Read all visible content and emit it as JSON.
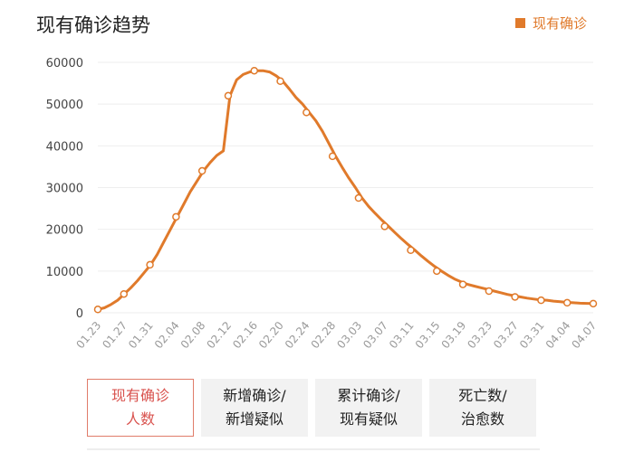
{
  "title": "现有确诊趋势",
  "legend": {
    "label": "现有确诊",
    "color": "#e07a2b"
  },
  "colors": {
    "line": "#e07a2b",
    "grid": "#eeeeee",
    "axis_text": "#444444",
    "tick_text": "#9a9a9a"
  },
  "tabs": [
    {
      "line1": "现有确诊",
      "line2": "人数",
      "active": true
    },
    {
      "line1": "新增确诊/",
      "line2": "新增疑似",
      "active": false
    },
    {
      "line1": "累计确诊/",
      "line2": "现有疑似",
      "active": false
    },
    {
      "line1": "死亡数/",
      "line2": "治愈数",
      "active": false
    }
  ],
  "chart_data": {
    "type": "line",
    "title": "现有确诊趋势",
    "xlabel": "",
    "ylabel": "",
    "legend": "top-right",
    "grid": true,
    "ylim": [
      0,
      60000
    ],
    "yticks": [
      0,
      10000,
      20000,
      30000,
      40000,
      50000,
      60000
    ],
    "x": [
      "01.23",
      "01.27",
      "01.31",
      "02.04",
      "02.08",
      "02.12",
      "02.16",
      "02.20",
      "02.24",
      "02.28",
      "03.03",
      "03.07",
      "03.11",
      "03.15",
      "03.19",
      "03.23",
      "03.27",
      "03.31",
      "04.04",
      "04.07"
    ],
    "series": [
      {
        "name": "现有确诊",
        "values": [
          800,
          4500,
          11500,
          23000,
          34000,
          52000,
          58000,
          55500,
          48000,
          37500,
          27500,
          20700,
          15000,
          10000,
          6800,
          5200,
          3800,
          3000,
          2400,
          2200
        ]
      }
    ],
    "curve": [
      [
        "01.23",
        800
      ],
      [
        "01.24",
        1200
      ],
      [
        "01.25",
        2000
      ],
      [
        "01.26",
        3000
      ],
      [
        "01.27",
        4500
      ],
      [
        "01.28",
        6000
      ],
      [
        "01.29",
        7700
      ],
      [
        "01.30",
        9600
      ],
      [
        "01.31",
        11500
      ],
      [
        "02.01",
        14000
      ],
      [
        "02.02",
        17000
      ],
      [
        "02.03",
        20000
      ],
      [
        "02.04",
        23000
      ],
      [
        "02.05",
        26000
      ],
      [
        "02.06",
        29000
      ],
      [
        "02.07",
        31500
      ],
      [
        "02.08",
        34000
      ],
      [
        "02.09",
        36000
      ],
      [
        "02.10",
        37700
      ],
      [
        "02.11",
        38800
      ],
      [
        "02.12",
        52000
      ],
      [
        "02.13",
        55800
      ],
      [
        "02.14",
        57100
      ],
      [
        "02.15",
        57700
      ],
      [
        "02.16",
        58000
      ],
      [
        "02.17",
        58000
      ],
      [
        "02.18",
        57700
      ],
      [
        "02.19",
        56800
      ],
      [
        "02.20",
        55500
      ],
      [
        "02.21",
        53600
      ],
      [
        "02.22",
        51600
      ],
      [
        "02.23",
        50000
      ],
      [
        "02.24",
        48000
      ],
      [
        "02.25",
        46000
      ],
      [
        "02.26",
        43500
      ],
      [
        "02.27",
        40500
      ],
      [
        "02.28",
        37500
      ],
      [
        "02.29",
        34800
      ],
      [
        "03.01",
        32300
      ],
      [
        "03.02",
        30000
      ],
      [
        "03.03",
        27500
      ],
      [
        "03.04",
        25500
      ],
      [
        "03.05",
        23800
      ],
      [
        "03.06",
        22200
      ],
      [
        "03.07",
        20700
      ],
      [
        "03.08",
        19200
      ],
      [
        "03.09",
        17700
      ],
      [
        "03.10",
        16300
      ],
      [
        "03.11",
        15000
      ],
      [
        "03.12",
        13600
      ],
      [
        "03.13",
        12300
      ],
      [
        "03.14",
        11100
      ],
      [
        "03.15",
        10000
      ],
      [
        "03.16",
        9000
      ],
      [
        "03.17",
        8100
      ],
      [
        "03.18",
        7400
      ],
      [
        "03.19",
        6800
      ],
      [
        "03.20",
        6400
      ],
      [
        "03.21",
        6000
      ],
      [
        "03.22",
        5600
      ],
      [
        "03.23",
        5200
      ],
      [
        "03.24",
        4800
      ],
      [
        "03.25",
        4400
      ],
      [
        "03.26",
        4100
      ],
      [
        "03.27",
        3800
      ],
      [
        "03.28",
        3500
      ],
      [
        "03.29",
        3300
      ],
      [
        "03.30",
        3100
      ],
      [
        "03.31",
        3000
      ],
      [
        "04.01",
        2800
      ],
      [
        "04.02",
        2650
      ],
      [
        "04.03",
        2500
      ],
      [
        "04.04",
        2400
      ],
      [
        "04.05",
        2300
      ],
      [
        "04.06",
        2250
      ],
      [
        "04.07",
        2200
      ]
    ]
  }
}
